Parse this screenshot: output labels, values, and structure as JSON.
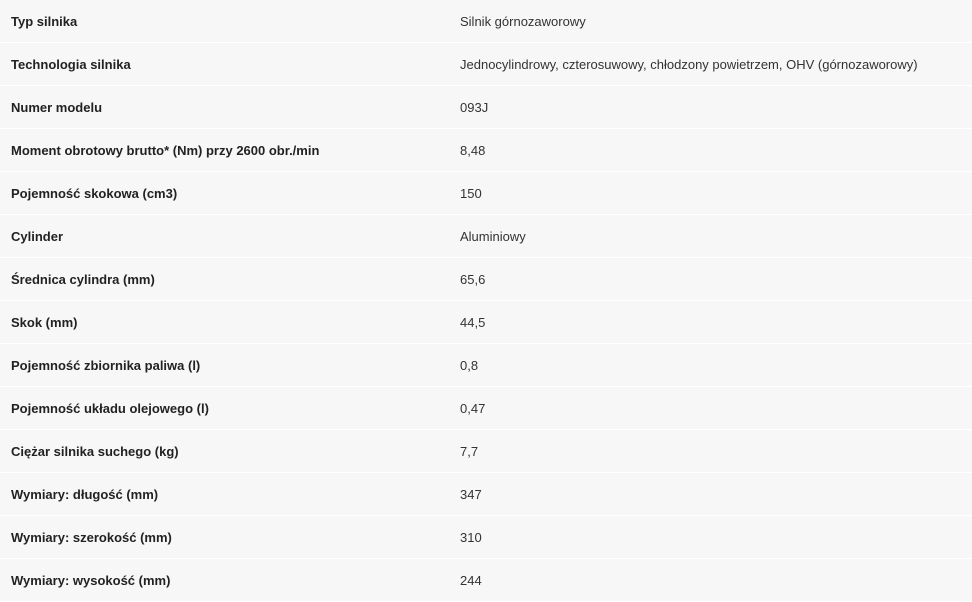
{
  "specs": [
    {
      "label": "Typ silnika",
      "value": "Silnik górnozaworowy"
    },
    {
      "label": "Technologia silnika",
      "value": "Jednocylindrowy, czterosuwowy, chłodzony powietrzem, OHV (górnozaworowy)"
    },
    {
      "label": "Numer modelu",
      "value": "093J"
    },
    {
      "label": "Moment obrotowy brutto* (Nm) przy 2600 obr./min",
      "value": "8,48"
    },
    {
      "label": "Pojemność skokowa (cm3)",
      "value": "150"
    },
    {
      "label": "Cylinder",
      "value": "Aluminiowy"
    },
    {
      "label": "Średnica cylindra (mm)",
      "value": "65,6"
    },
    {
      "label": "Skok (mm)",
      "value": "44,5"
    },
    {
      "label": "Pojemność zbiornika paliwa (l)",
      "value": "0,8"
    },
    {
      "label": "Pojemność układu olejowego (l)",
      "value": "0,47"
    },
    {
      "label": "Ciężar silnika suchego (kg)",
      "value": "7,7"
    },
    {
      "label": "Wymiary: długość (mm)",
      "value": "347"
    },
    {
      "label": "Wymiary: szerokość (mm)",
      "value": "310"
    },
    {
      "label": "Wymiary: wysokość (mm)",
      "value": "244"
    }
  ]
}
